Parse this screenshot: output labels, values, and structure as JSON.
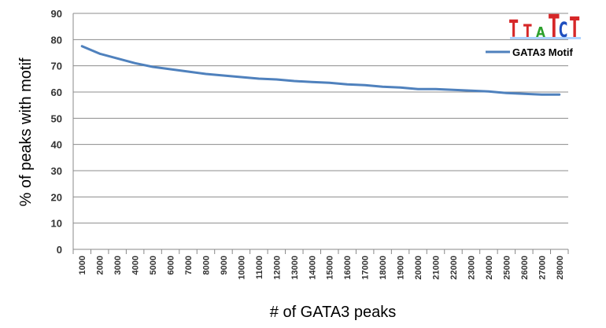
{
  "chart_data": {
    "type": "line",
    "title": "",
    "xlabel": "# of GATA3 peaks",
    "ylabel": "% of peaks with motif",
    "ylim": [
      0,
      90
    ],
    "yticks": [
      0,
      10,
      20,
      30,
      40,
      50,
      60,
      70,
      80,
      90
    ],
    "grid": true,
    "legend": "top-right",
    "categories": [
      "1000",
      "2000",
      "3000",
      "4000",
      "5000",
      "6000",
      "7000",
      "8000",
      "9000",
      "10000",
      "11000",
      "12000",
      "13000",
      "14000",
      "15000",
      "16000",
      "17000",
      "18000",
      "19000",
      "20000",
      "21000",
      "22000",
      "23000",
      "24000",
      "25000",
      "26000",
      "27000",
      "28000"
    ],
    "series": [
      {
        "name": "GATA3 Motif",
        "color": "#4f81bd",
        "values": [
          77.5,
          74.6,
          72.8,
          71.0,
          69.6,
          68.7,
          67.8,
          66.9,
          66.3,
          65.7,
          65.1,
          64.8,
          64.2,
          63.8,
          63.5,
          62.9,
          62.6,
          62.0,
          61.7,
          61.1,
          61.1,
          60.8,
          60.5,
          60.2,
          59.6,
          59.3,
          59.0,
          59.0
        ]
      }
    ]
  },
  "motif_logo": {
    "letters": [
      "T",
      "T",
      "A",
      "T",
      "C",
      "T"
    ],
    "colors": {
      "T": "#d62728",
      "A": "#2ca02c",
      "C": "#1f4fbf"
    }
  }
}
